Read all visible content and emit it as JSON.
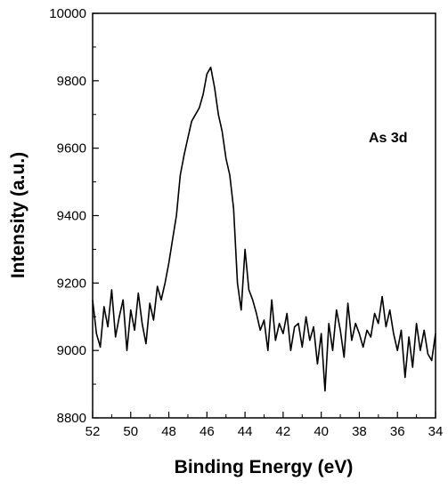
{
  "chart_data": {
    "type": "line",
    "title": "",
    "xlabel": "Binding Energy (eV)",
    "ylabel": "Intensity (a.u.)",
    "xlim": [
      52,
      34
    ],
    "ylim": [
      8800,
      10000
    ],
    "x_reversed": true,
    "grid": false,
    "legend": "none",
    "line_color": "#000000",
    "annotation": "As 3d",
    "x_ticks": [
      "52",
      "50",
      "48",
      "46",
      "44",
      "42",
      "40",
      "38",
      "36",
      "34"
    ],
    "y_ticks": [
      "8800",
      "9000",
      "9200",
      "9400",
      "9600",
      "9800",
      "10000"
    ],
    "series": [
      {
        "x": [
          52.0,
          51.8,
          51.6,
          51.4,
          51.2,
          51.0,
          50.8,
          50.6,
          50.4,
          50.2,
          50.0,
          49.8,
          49.6,
          49.4,
          49.2,
          49.0,
          48.8,
          48.6,
          48.4,
          48.2,
          48.0,
          47.8,
          47.6,
          47.4,
          47.2,
          47.0,
          46.8,
          46.6,
          46.4,
          46.2,
          46.0,
          45.8,
          45.6,
          45.4,
          45.2,
          45.0,
          44.8,
          44.6,
          44.4,
          44.2,
          44.0,
          43.8,
          43.6,
          43.4,
          43.2,
          43.0,
          42.8,
          42.6,
          42.4,
          42.2,
          42.0,
          41.8,
          41.6,
          41.4,
          41.2,
          41.0,
          40.8,
          40.6,
          40.4,
          40.2,
          40.0,
          39.8,
          39.6,
          39.4,
          39.2,
          39.0,
          38.8,
          38.6,
          38.4,
          38.2,
          38.0,
          37.8,
          37.6,
          37.4,
          37.2,
          37.0,
          36.8,
          36.6,
          36.4,
          36.2,
          36.0,
          35.8,
          35.6,
          35.4,
          35.2,
          35.0,
          34.8,
          34.6,
          34.4,
          34.2,
          34.0
        ],
        "y": [
          9150,
          9050,
          9010,
          9130,
          9070,
          9180,
          9040,
          9100,
          9150,
          9000,
          9120,
          9060,
          9170,
          9080,
          9020,
          9140,
          9090,
          9190,
          9150,
          9200,
          9260,
          9330,
          9400,
          9520,
          9580,
          9630,
          9680,
          9700,
          9720,
          9760,
          9820,
          9840,
          9780,
          9700,
          9650,
          9570,
          9520,
          9420,
          9200,
          9120,
          9300,
          9180,
          9150,
          9110,
          9060,
          9090,
          9000,
          9150,
          9030,
          9080,
          9050,
          9110,
          9000,
          9070,
          9080,
          9010,
          9100,
          9030,
          9070,
          8960,
          9050,
          8880,
          9080,
          9000,
          9120,
          9060,
          8980,
          9140,
          9030,
          9080,
          9050,
          9010,
          9060,
          9040,
          9110,
          9080,
          9160,
          9070,
          9120,
          9050,
          9000,
          9060,
          8920,
          9040,
          8950,
          9080,
          9000,
          9060,
          8990,
          8970,
          9050
        ]
      }
    ]
  }
}
